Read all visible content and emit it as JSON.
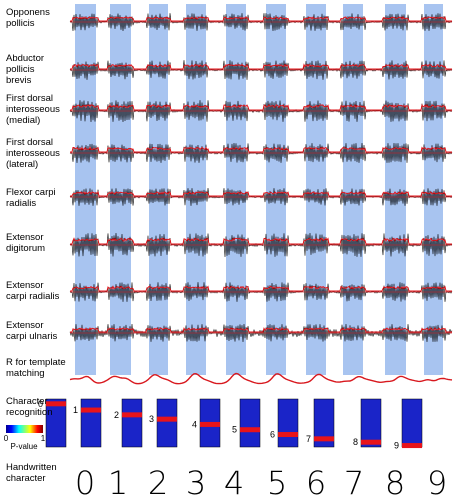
{
  "rows": [
    {
      "label": "Opponens\npollicis",
      "key": "op"
    },
    {
      "label": "Abductor\npollicis\nbrevis",
      "key": "apb"
    },
    {
      "label": "First dorsal\ninterosseous\n(medial)",
      "key": "fdim"
    },
    {
      "label": "First dorsal\ninterosseous\n(lateral)",
      "key": "fdil"
    },
    {
      "label": "Flexor carpi\nradialis",
      "key": "fcr"
    },
    {
      "label": "Extensor\ndigitorum",
      "key": "ed"
    },
    {
      "label": "Extensor\ncarpi radialis",
      "key": "ecr"
    },
    {
      "label": "Extensor\ncarpi ulnaris",
      "key": "ecu"
    }
  ],
  "r_label": "R for template\nmatching",
  "char_recog_label": "Character\nrecognition",
  "colorbar": {
    "min_label": "0",
    "max_label": "1",
    "title": "P-value"
  },
  "handwritten_label": "Handwritten\ncharacter",
  "digits": [
    "0",
    "1",
    "2",
    "3",
    "4",
    "5",
    "6",
    "7",
    "8",
    "9"
  ],
  "colors": {
    "highlight": "#a8c4f0",
    "emg_trace": "#000000",
    "envelope": "#e0141a",
    "r_curve": "#d8181e",
    "recog_bg": "#1a24c8",
    "recog_match": "#e8141a"
  },
  "chart_data": {
    "type": "emg-panel",
    "recognized_digits": [
      "0",
      "1",
      "2",
      "3",
      "4",
      "5",
      "6",
      "7",
      "8",
      "9"
    ],
    "match_position": [
      0.1,
      0.23,
      0.33,
      0.42,
      0.53,
      0.64,
      0.74,
      0.83,
      0.9,
      0.97
    ]
  }
}
